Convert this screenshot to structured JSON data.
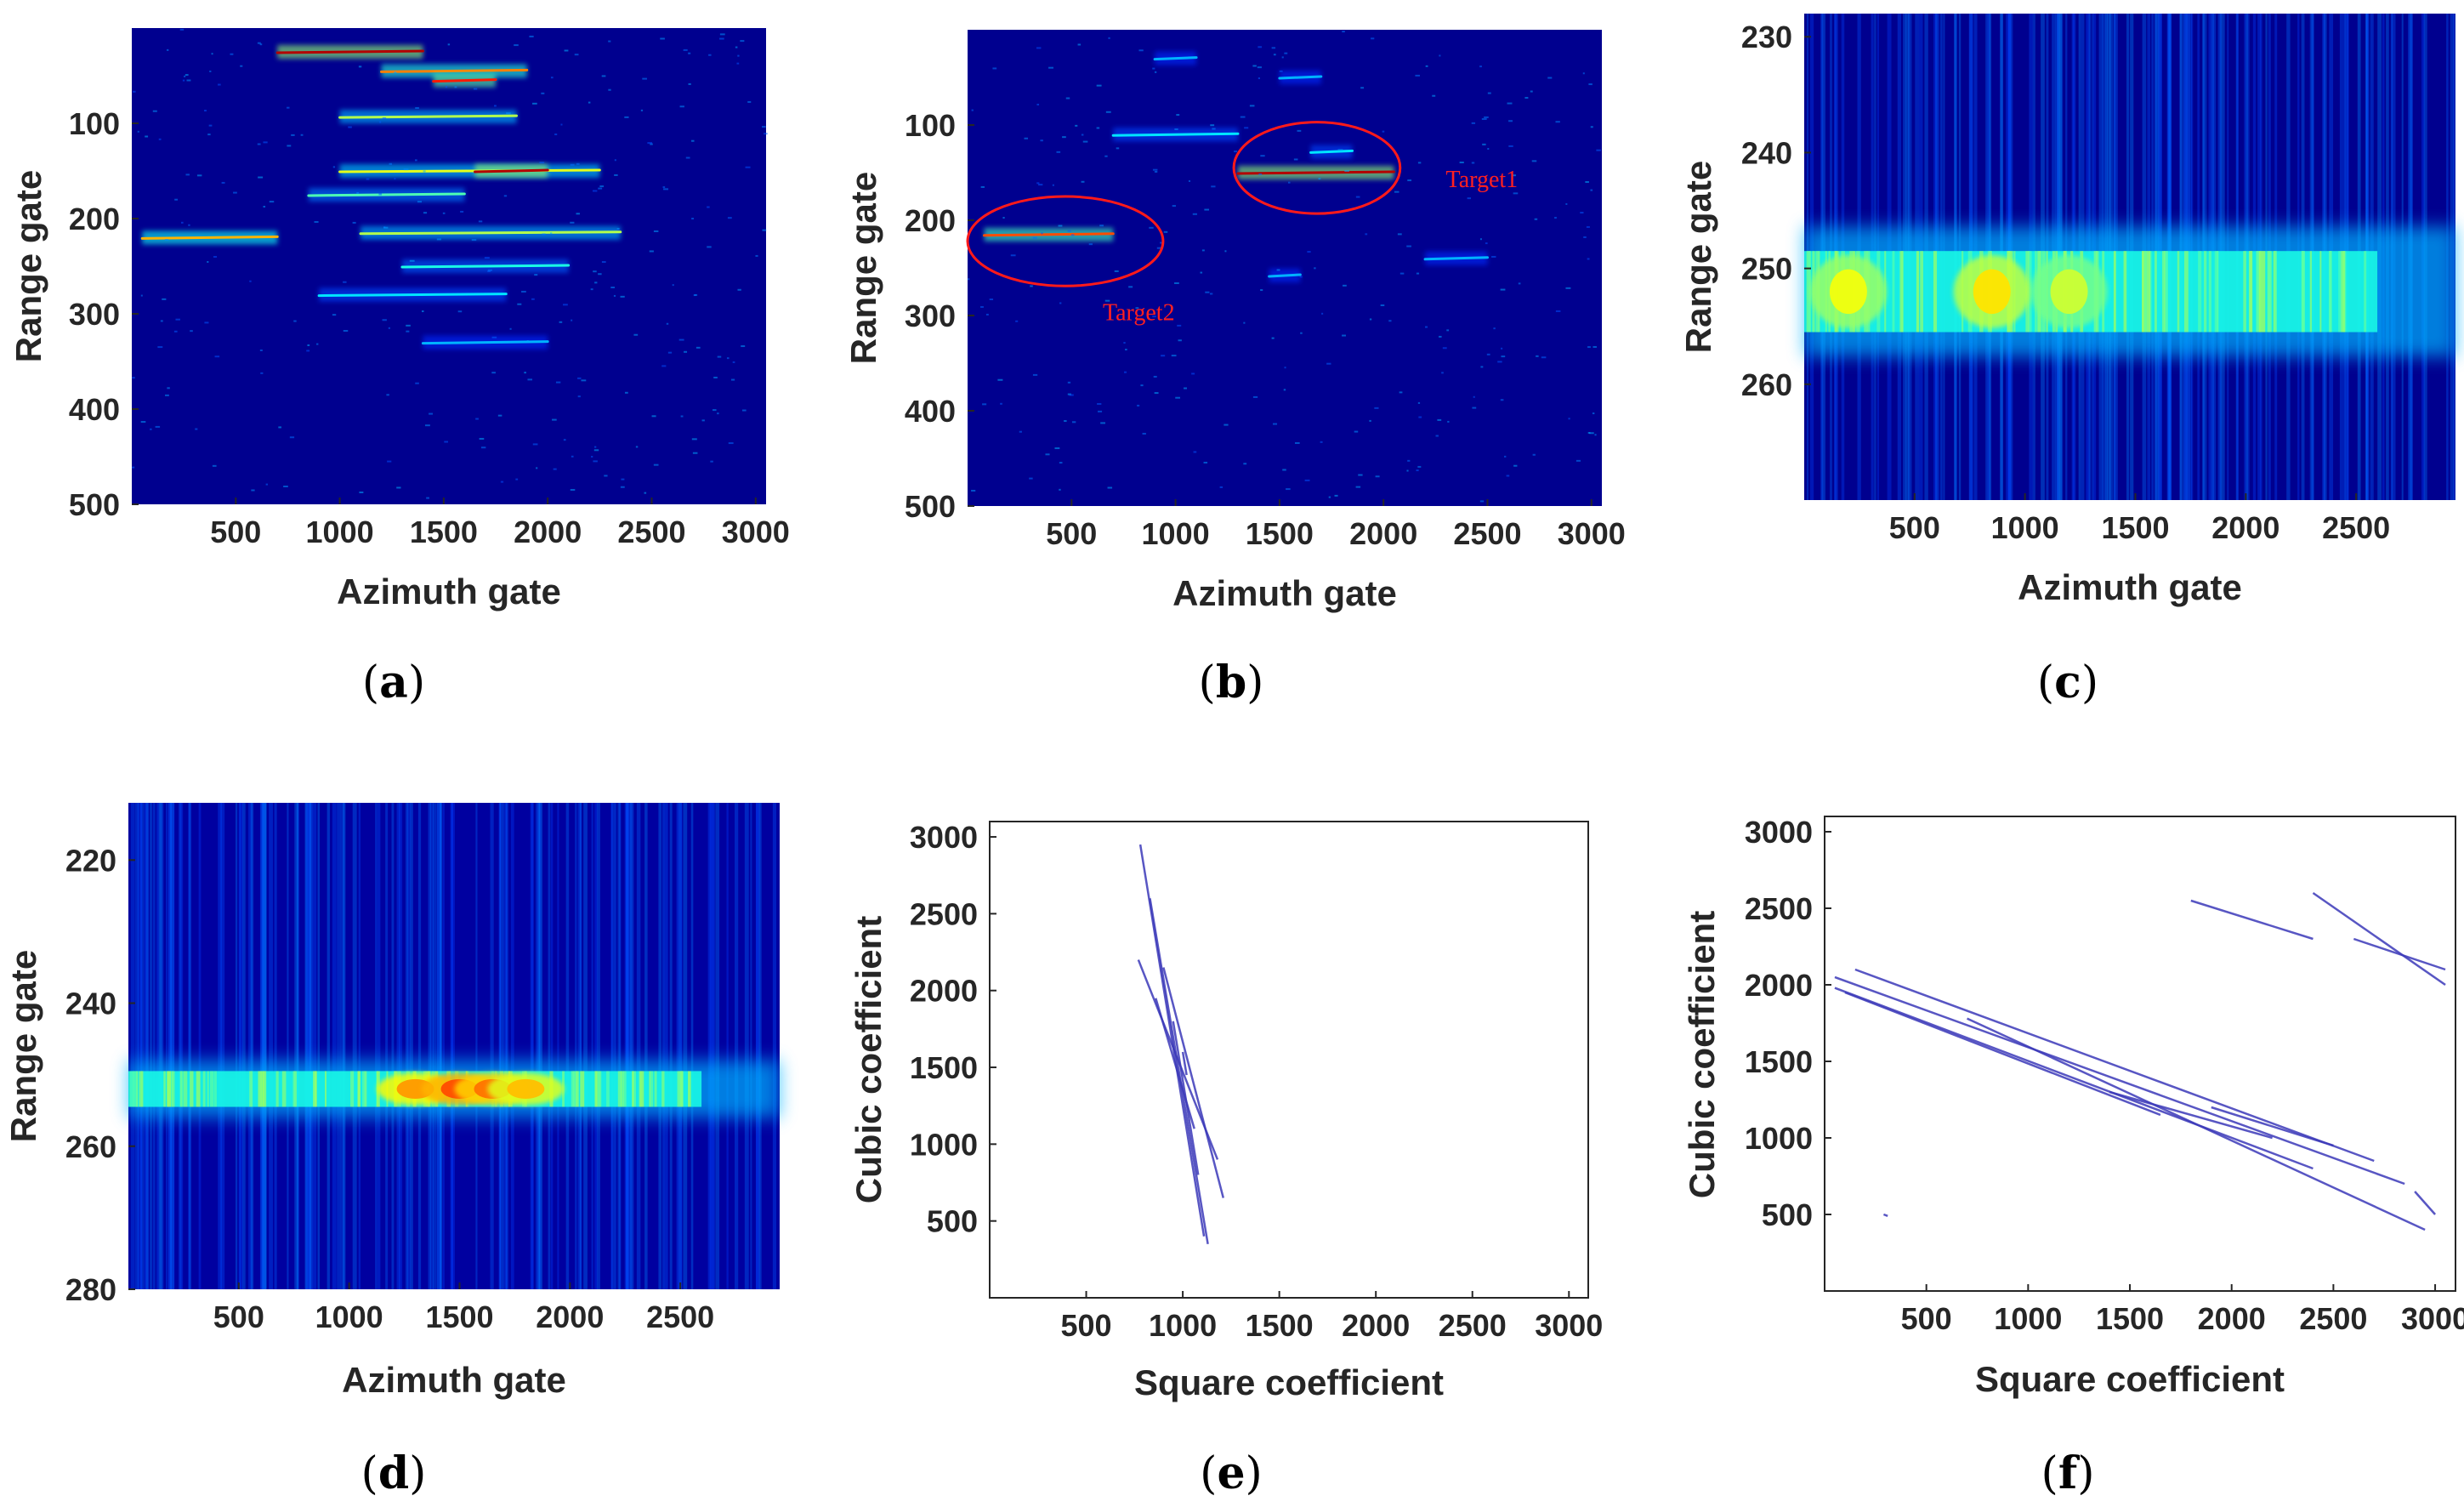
{
  "chart_data": [
    {
      "panel": "a",
      "type": "heatmap",
      "caption_letter": "a",
      "xlabel": "Azimuth gate",
      "ylabel": "Range gate",
      "xlim": [
        0,
        3050
      ],
      "ylim": [
        0,
        500
      ],
      "y_inverted": true,
      "xticks": [
        "500",
        "1000",
        "1500",
        "2000",
        "2500",
        "3000"
      ],
      "yticks": [
        "100",
        "200",
        "300",
        "400",
        "500"
      ],
      "streaks": [
        {
          "x0": 700,
          "x1": 1400,
          "y": 25,
          "level": 0.95
        },
        {
          "x0": 1200,
          "x1": 1900,
          "y": 45,
          "level": 0.75
        },
        {
          "x0": 1450,
          "x1": 1750,
          "y": 55,
          "level": 0.85
        },
        {
          "x0": 1000,
          "x1": 1850,
          "y": 93,
          "level": 0.55
        },
        {
          "x0": 1000,
          "x1": 2250,
          "y": 150,
          "level": 0.6
        },
        {
          "x0": 1650,
          "x1": 2000,
          "y": 150,
          "level": 0.95
        },
        {
          "x0": 850,
          "x1": 1600,
          "y": 175,
          "level": 0.45
        },
        {
          "x0": 50,
          "x1": 700,
          "y": 220,
          "level": 0.7
        },
        {
          "x0": 1100,
          "x1": 2350,
          "y": 215,
          "level": 0.55
        },
        {
          "x0": 1300,
          "x1": 2100,
          "y": 250,
          "level": 0.4
        },
        {
          "x0": 900,
          "x1": 1800,
          "y": 280,
          "level": 0.35
        },
        {
          "x0": 1400,
          "x1": 2000,
          "y": 330,
          "level": 0.3
        }
      ]
    },
    {
      "panel": "b",
      "type": "heatmap",
      "caption_letter": "b",
      "xlabel": "Azimuth gate",
      "ylabel": "Range gate",
      "xlim": [
        0,
        3050
      ],
      "ylim": [
        0,
        500
      ],
      "y_inverted": true,
      "xticks": [
        "500",
        "1000",
        "1500",
        "2000",
        "2500",
        "3000"
      ],
      "yticks": [
        "100",
        "200",
        "300",
        "400",
        "500"
      ],
      "streaks": [
        {
          "x0": 1300,
          "x1": 2050,
          "y": 150,
          "level": 0.95
        },
        {
          "x0": 80,
          "x1": 700,
          "y": 215,
          "level": 0.8
        },
        {
          "x0": 700,
          "x1": 1300,
          "y": 110,
          "level": 0.35
        },
        {
          "x0": 900,
          "x1": 1100,
          "y": 30,
          "level": 0.3
        },
        {
          "x0": 1500,
          "x1": 1700,
          "y": 50,
          "level": 0.3
        },
        {
          "x0": 1650,
          "x1": 1850,
          "y": 128,
          "level": 0.35
        },
        {
          "x0": 2200,
          "x1": 2500,
          "y": 240,
          "level": 0.3
        },
        {
          "x0": 1450,
          "x1": 1600,
          "y": 258,
          "level": 0.3
        }
      ],
      "annotations": [
        {
          "text": "Target1",
          "x": 2300,
          "y": 165,
          "ellipse_cx": 1680,
          "ellipse_cy": 145,
          "ellipse_rx": 400,
          "ellipse_ry": 48
        },
        {
          "text": "Target2",
          "x": 650,
          "y": 305,
          "ellipse_cx": 470,
          "ellipse_cy": 222,
          "ellipse_rx": 470,
          "ellipse_ry": 47
        }
      ]
    },
    {
      "panel": "c",
      "type": "heatmap",
      "caption_letter": "c",
      "xlabel": "Azimuth gate",
      "ylabel": "Range gate",
      "xlim": [
        0,
        2950
      ],
      "ylim": [
        228,
        270
      ],
      "y_inverted": true,
      "xticks": [
        "500",
        "1000",
        "1500",
        "2000",
        "2500"
      ],
      "yticks": [
        "230",
        "240",
        "250",
        "260"
      ],
      "band_center": 252,
      "band_halfwidth": 3.5,
      "hot_spots": [
        {
          "x": 200,
          "level": 0.75
        },
        {
          "x": 850,
          "level": 0.8
        },
        {
          "x": 1200,
          "level": 0.7
        }
      ]
    },
    {
      "panel": "d",
      "type": "heatmap",
      "caption_letter": "d",
      "xlabel": "Azimuth gate",
      "ylabel": "Range gate",
      "xlim": [
        0,
        2950
      ],
      "ylim": [
        212,
        280
      ],
      "y_inverted": true,
      "xticks": [
        "500",
        "1000",
        "1500",
        "2000",
        "2500"
      ],
      "yticks": [
        "220",
        "240",
        "260",
        "280"
      ],
      "band_center": 252,
      "band_halfwidth": 2.5,
      "hot_spots": [
        {
          "x": 1300,
          "level": 0.9
        },
        {
          "x": 1500,
          "level": 1.0
        },
        {
          "x": 1650,
          "level": 0.95
        },
        {
          "x": 1800,
          "level": 0.85
        }
      ]
    },
    {
      "panel": "e",
      "type": "line",
      "caption_letter": "e",
      "xlabel": "Square coefficient",
      "ylabel": "Cubic coefficient",
      "xlim": [
        0,
        3100
      ],
      "ylim": [
        0,
        3100
      ],
      "xticks": [
        "500",
        "1000",
        "1500",
        "2000",
        "2500",
        "3000"
      ],
      "yticks": [
        "500",
        "1000",
        "1500",
        "2000",
        "2500",
        "3000"
      ],
      "series": [
        {
          "x": [
            780,
            1110
          ],
          "y": [
            2950,
            400
          ]
        },
        {
          "x": [
            830,
            1130
          ],
          "y": [
            2600,
            350
          ]
        },
        {
          "x": [
            770,
            1180
          ],
          "y": [
            2200,
            900
          ]
        },
        {
          "x": [
            900,
            1210
          ],
          "y": [
            2150,
            650
          ]
        },
        {
          "x": [
            860,
            1060
          ],
          "y": [
            1950,
            1100
          ]
        },
        {
          "x": [
            950,
            1080
          ],
          "y": [
            1800,
            800
          ]
        },
        {
          "x": [
            1000,
            1020
          ],
          "y": [
            1600,
            1450
          ]
        }
      ]
    },
    {
      "panel": "f",
      "type": "line",
      "caption_letter": "f",
      "xlabel": "Square coefficient",
      "ylabel": "Cubic coefficient",
      "xlim": [
        0,
        3100
      ],
      "ylim": [
        0,
        3100
      ],
      "xticks": [
        "500",
        "1000",
        "1500",
        "2000",
        "2500",
        "3000"
      ],
      "yticks": [
        "500",
        "1000",
        "1500",
        "2000",
        "2500",
        "3000"
      ],
      "series": [
        {
          "x": [
            50,
            2850
          ],
          "y": [
            2050,
            700
          ]
        },
        {
          "x": [
            50,
            2400
          ],
          "y": [
            1980,
            800
          ]
        },
        {
          "x": [
            150,
            2700
          ],
          "y": [
            2100,
            850
          ]
        },
        {
          "x": [
            100,
            1650
          ],
          "y": [
            1950,
            1150
          ]
        },
        {
          "x": [
            700,
            2950
          ],
          "y": [
            1780,
            400
          ]
        },
        {
          "x": [
            1400,
            2200
          ],
          "y": [
            1300,
            1000
          ]
        },
        {
          "x": [
            1900,
            2500
          ],
          "y": [
            1200,
            950
          ]
        },
        {
          "x": [
            1800,
            2400
          ],
          "y": [
            2550,
            2300
          ]
        },
        {
          "x": [
            2400,
            3050
          ],
          "y": [
            2600,
            2000
          ]
        },
        {
          "x": [
            2600,
            3050
          ],
          "y": [
            2300,
            2100
          ]
        },
        {
          "x": [
            2900,
            3000
          ],
          "y": [
            650,
            500
          ]
        },
        {
          "x": [
            290,
            310
          ],
          "y": [
            500,
            490
          ]
        }
      ]
    }
  ]
}
